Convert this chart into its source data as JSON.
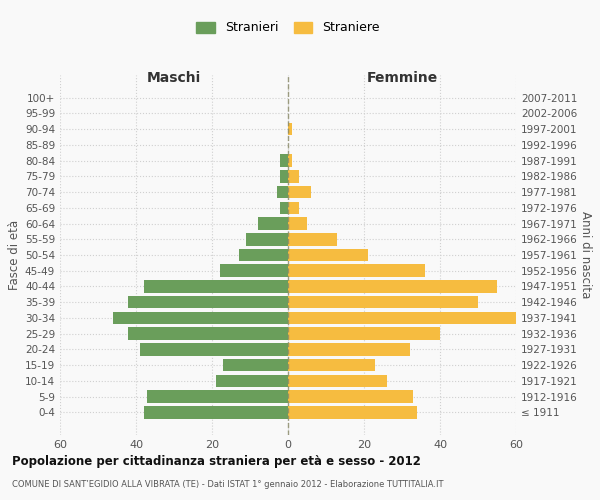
{
  "age_groups": [
    "100+",
    "95-99",
    "90-94",
    "85-89",
    "80-84",
    "75-79",
    "70-74",
    "65-69",
    "60-64",
    "55-59",
    "50-54",
    "45-49",
    "40-44",
    "35-39",
    "30-34",
    "25-29",
    "20-24",
    "15-19",
    "10-14",
    "5-9",
    "0-4"
  ],
  "birth_years": [
    "≤ 1911",
    "1912-1916",
    "1917-1921",
    "1922-1926",
    "1927-1931",
    "1932-1936",
    "1937-1941",
    "1942-1946",
    "1947-1951",
    "1952-1956",
    "1957-1961",
    "1962-1966",
    "1967-1971",
    "1972-1976",
    "1977-1981",
    "1982-1986",
    "1987-1991",
    "1992-1996",
    "1997-2001",
    "2002-2006",
    "2007-2011"
  ],
  "maschi": [
    0,
    0,
    0,
    0,
    2,
    2,
    3,
    2,
    8,
    11,
    13,
    18,
    38,
    42,
    46,
    42,
    39,
    17,
    19,
    37,
    38
  ],
  "femmine": [
    0,
    0,
    1,
    0,
    1,
    3,
    6,
    3,
    5,
    13,
    21,
    36,
    55,
    50,
    60,
    40,
    32,
    23,
    26,
    33,
    34
  ],
  "male_color": "#6a9e5b",
  "female_color": "#f6bc40",
  "title": "Popolazione per cittadinanza straniera per età e sesso - 2012",
  "subtitle": "COMUNE DI SANT’EGIDIO ALLA VIBRATA (TE) - Dati ISTAT 1° gennaio 2012 - Elaborazione TUTTITALIA.IT",
  "xlabel_left": "Maschi",
  "xlabel_right": "Femmine",
  "ylabel_left": "Fasce di età",
  "ylabel_right": "Anni di nascita",
  "legend_male": "Stranieri",
  "legend_female": "Straniere",
  "xlim": 60,
  "xticks": [
    -60,
    -40,
    -20,
    0,
    20,
    40,
    60
  ],
  "background_color": "#f9f9f9",
  "grid_color": "#d0d0d0",
  "bar_height": 0.8
}
